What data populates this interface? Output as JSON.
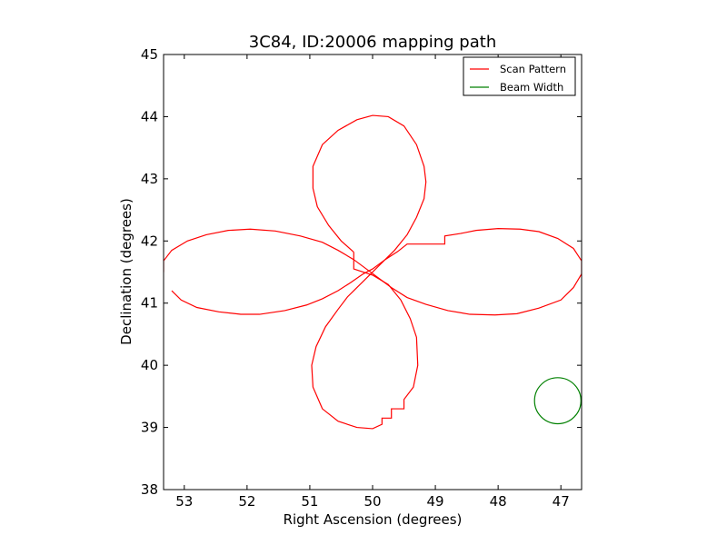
{
  "chart_data": {
    "type": "line",
    "title": "3C84, ID:20006 mapping path",
    "xlabel": "Right Ascension (degrees)",
    "ylabel": "Declination (degrees)",
    "xlim": [
      53.33,
      46.67
    ],
    "ylim": [
      38,
      45
    ],
    "x_inverted": true,
    "x_ticks": [
      53,
      52,
      51,
      50,
      49,
      48,
      47
    ],
    "y_ticks": [
      38,
      39,
      40,
      41,
      42,
      43,
      44,
      45
    ],
    "grid": false,
    "legend_position": "top-right",
    "series": [
      {
        "name": "Scan Pattern",
        "color": "#ff0000",
        "points": [
          [
            53.2,
            41.2
          ],
          [
            53.05,
            41.05
          ],
          [
            52.8,
            40.93
          ],
          [
            52.45,
            40.86
          ],
          [
            52.1,
            40.82
          ],
          [
            51.8,
            40.82
          ],
          [
            51.4,
            40.88
          ],
          [
            51.05,
            40.97
          ],
          [
            50.8,
            41.07
          ],
          [
            50.55,
            41.2
          ],
          [
            50.35,
            41.33
          ],
          [
            50.15,
            41.47
          ],
          [
            50.0,
            41.55
          ],
          [
            49.8,
            41.7
          ],
          [
            49.6,
            41.83
          ],
          [
            49.45,
            41.95
          ],
          [
            49.25,
            41.95
          ],
          [
            48.85,
            41.95
          ],
          [
            48.85,
            42.08
          ],
          [
            48.6,
            42.12
          ],
          [
            48.35,
            42.17
          ],
          [
            48.0,
            42.2
          ],
          [
            47.65,
            42.19
          ],
          [
            47.35,
            42.15
          ],
          [
            47.05,
            42.04
          ],
          [
            46.8,
            41.88
          ],
          [
            46.67,
            41.68
          ],
          [
            46.67,
            41.47
          ],
          [
            46.8,
            41.25
          ],
          [
            47.0,
            41.05
          ],
          [
            47.35,
            40.92
          ],
          [
            47.7,
            40.83
          ],
          [
            48.05,
            40.81
          ],
          [
            48.45,
            40.82
          ],
          [
            48.8,
            40.88
          ],
          [
            49.15,
            40.98
          ],
          [
            49.45,
            41.09
          ],
          [
            49.7,
            41.25
          ],
          [
            49.9,
            41.4
          ],
          [
            50.1,
            41.55
          ],
          [
            50.3,
            41.7
          ],
          [
            50.55,
            41.85
          ],
          [
            50.8,
            41.98
          ],
          [
            51.15,
            42.08
          ],
          [
            51.55,
            42.16
          ],
          [
            51.95,
            42.19
          ],
          [
            52.3,
            42.17
          ],
          [
            52.65,
            42.1
          ],
          [
            52.95,
            42.0
          ],
          [
            53.2,
            41.85
          ],
          [
            53.33,
            41.68
          ],
          [
            53.33,
            41.5
          ]
        ]
      },
      {
        "name": "Beam Width",
        "color": "#008000",
        "circle_center": [
          47.05,
          39.43
        ],
        "circle_radius": 0.37
      }
    ],
    "petals": [
      {
        "name": "Scan Pattern",
        "color": "#ff0000",
        "points": [
          [
            50.3,
            41.82
          ],
          [
            50.3,
            41.55
          ],
          [
            50.0,
            41.45
          ],
          [
            49.75,
            41.3
          ],
          [
            49.55,
            41.05
          ],
          [
            49.4,
            40.75
          ],
          [
            49.3,
            40.45
          ],
          [
            49.28,
            40.0
          ],
          [
            49.35,
            39.65
          ],
          [
            49.5,
            39.45
          ],
          [
            49.5,
            39.3
          ],
          [
            49.7,
            39.3
          ],
          [
            49.7,
            39.15
          ],
          [
            49.85,
            39.15
          ],
          [
            49.85,
            39.05
          ],
          [
            50.0,
            38.98
          ],
          [
            50.25,
            39.0
          ],
          [
            50.55,
            39.1
          ],
          [
            50.8,
            39.3
          ],
          [
            50.95,
            39.65
          ],
          [
            50.97,
            40.0
          ],
          [
            50.9,
            40.3
          ],
          [
            50.75,
            40.62
          ],
          [
            50.55,
            40.9
          ],
          [
            50.4,
            41.1
          ],
          [
            50.2,
            41.3
          ],
          [
            50.05,
            41.45
          ],
          [
            49.85,
            41.65
          ],
          [
            49.65,
            41.85
          ],
          [
            49.45,
            42.1
          ],
          [
            49.3,
            42.38
          ],
          [
            49.18,
            42.68
          ],
          [
            49.15,
            42.95
          ],
          [
            49.18,
            43.2
          ],
          [
            49.3,
            43.55
          ],
          [
            49.5,
            43.85
          ],
          [
            49.75,
            44.0
          ],
          [
            50.0,
            44.02
          ],
          [
            50.25,
            43.95
          ],
          [
            50.55,
            43.78
          ],
          [
            50.8,
            43.55
          ],
          [
            50.95,
            43.2
          ],
          [
            50.95,
            42.85
          ],
          [
            50.88,
            42.55
          ],
          [
            50.7,
            42.25
          ],
          [
            50.5,
            42.0
          ],
          [
            50.3,
            41.82
          ]
        ]
      }
    ]
  }
}
